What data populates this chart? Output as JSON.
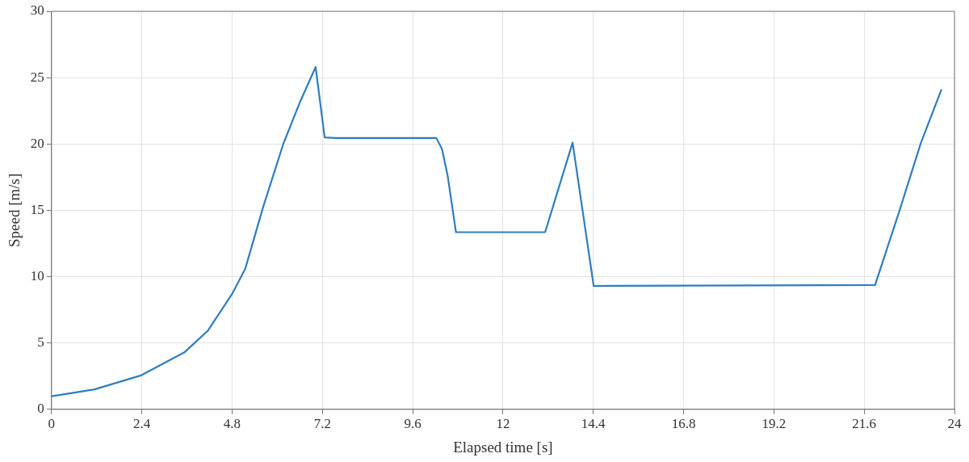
{
  "chart_data": {
    "type": "line",
    "xlabel": "Elapsed time [s]",
    "ylabel": "Speed [m/s]",
    "x": [
      0,
      1.14,
      2.39,
      3.53,
      4.16,
      4.8,
      5.15,
      5.62,
      6.16,
      6.61,
      7.02,
      7.26,
      7.54,
      10.23,
      10.38,
      10.53,
      10.75,
      13.12,
      13.85,
      14.41,
      21.89,
      22.53,
      23.11,
      23.65
    ],
    "series": [
      {
        "color": "#2f7dc0",
        "values": [
          0.98,
          1.5,
          2.57,
          4.29,
          5.94,
          8.7,
          10.6,
          15.2,
          20.0,
          23.2,
          25.8,
          20.5,
          20.45,
          20.45,
          19.6,
          17.6,
          13.35,
          13.35,
          20.1,
          9.3,
          9.37,
          14.9,
          20.1,
          24.07
        ]
      }
    ],
    "xlim": [
      0,
      24
    ],
    "xticks": [
      0,
      2.4,
      4.8,
      7.2,
      9.6,
      12,
      14.4,
      16.8,
      19.2,
      21.6,
      24
    ],
    "ylim": [
      0,
      30
    ],
    "yticks": [
      0,
      5,
      10,
      15,
      20,
      25,
      30
    ],
    "grid": true,
    "legend": false,
    "marker": "none",
    "line_style": "solid"
  }
}
